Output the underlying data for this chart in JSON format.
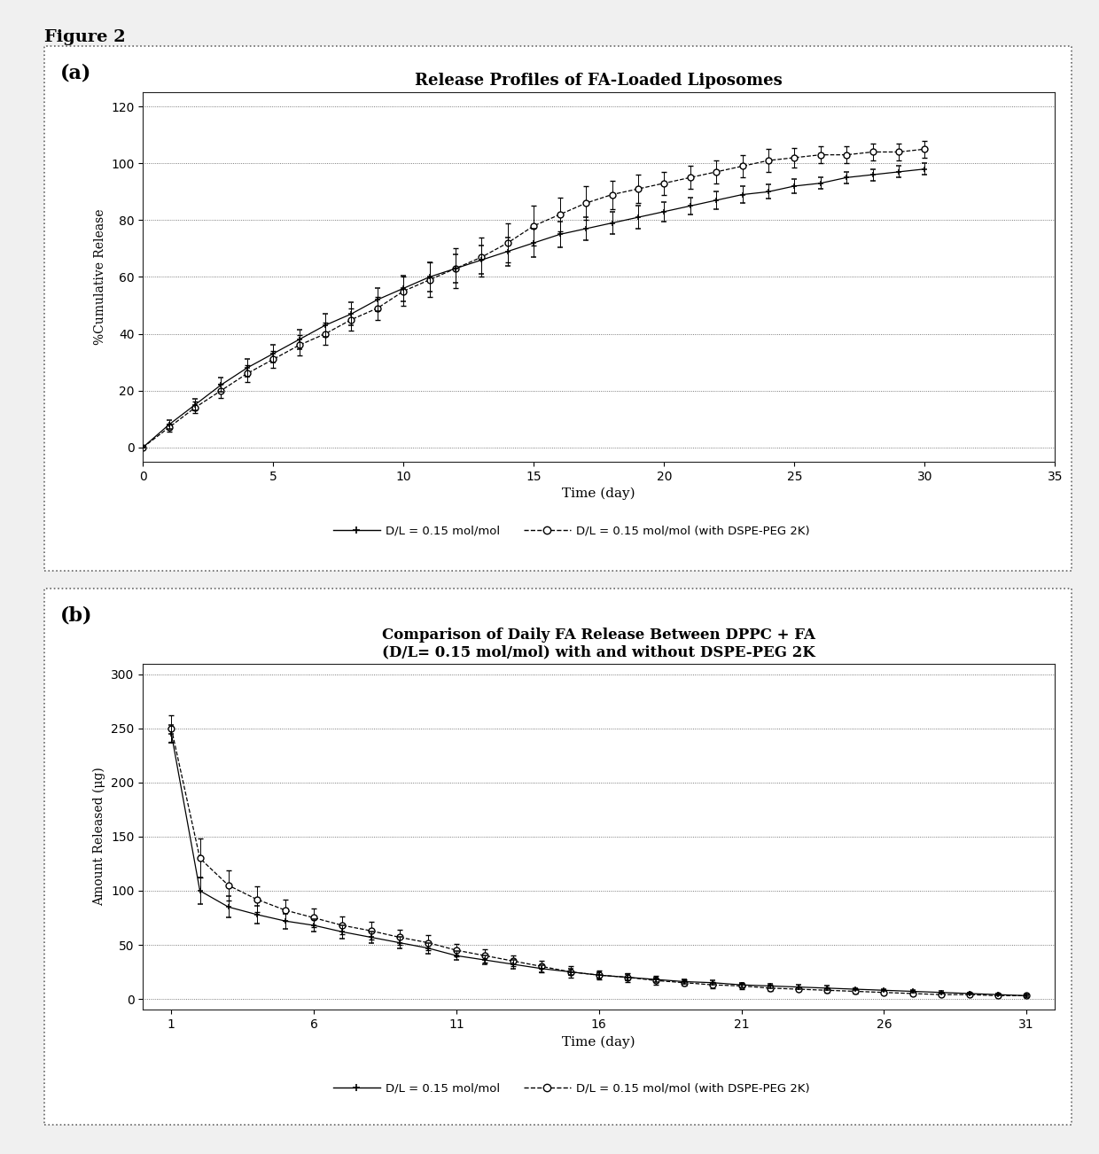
{
  "fig_label": "Figure 2",
  "panel_a": {
    "title": "Release Profiles of FA-Loaded Liposomes",
    "xlabel": "Time (day)",
    "ylabel": "%Cumulative Release",
    "xlim": [
      0,
      35
    ],
    "ylim": [
      -5,
      125
    ],
    "xticks": [
      0,
      5,
      10,
      15,
      20,
      25,
      30,
      35
    ],
    "yticks": [
      0,
      20,
      40,
      60,
      80,
      100,
      120
    ],
    "series1_x": [
      0,
      1,
      2,
      3,
      4,
      5,
      6,
      7,
      8,
      9,
      10,
      11,
      12,
      13,
      14,
      15,
      16,
      17,
      18,
      19,
      20,
      21,
      22,
      23,
      24,
      25,
      26,
      27,
      28,
      29,
      30
    ],
    "series1_y": [
      0,
      8,
      15,
      22,
      28,
      33,
      38,
      43,
      47,
      52,
      56,
      60,
      63,
      66,
      69,
      72,
      75,
      77,
      79,
      81,
      83,
      85,
      87,
      89,
      90,
      92,
      93,
      95,
      96,
      97,
      98
    ],
    "series1_err": [
      0,
      1.5,
      2,
      2.5,
      3,
      3,
      3.5,
      4,
      4,
      4,
      4.5,
      5,
      5,
      5,
      5,
      5,
      4.5,
      4,
      4,
      4,
      3.5,
      3,
      3,
      3,
      2.5,
      2.5,
      2,
      2,
      2,
      2,
      2
    ],
    "series2_x": [
      0,
      1,
      2,
      3,
      4,
      5,
      6,
      7,
      8,
      9,
      10,
      11,
      12,
      13,
      14,
      15,
      16,
      17,
      18,
      19,
      20,
      21,
      22,
      23,
      24,
      25,
      26,
      27,
      28,
      29,
      30
    ],
    "series2_y": [
      0,
      7,
      14,
      20,
      26,
      31,
      36,
      40,
      45,
      49,
      55,
      59,
      63,
      67,
      72,
      78,
      82,
      86,
      89,
      91,
      93,
      95,
      97,
      99,
      101,
      102,
      103,
      103,
      104,
      104,
      105
    ],
    "series2_err": [
      0,
      1.5,
      2,
      2.5,
      3,
      3,
      3.5,
      4,
      4,
      4,
      5,
      6,
      7,
      7,
      7,
      7,
      6,
      6,
      5,
      5,
      4,
      4,
      4,
      4,
      4,
      3.5,
      3,
      3,
      3,
      3,
      3
    ],
    "legend1": "D/L = 0.15 mol/mol",
    "legend2": "D/L = 0.15 mol/mol (with DSPE-PEG 2K)"
  },
  "panel_b": {
    "title": "Comparison of Daily FA Release Between DPPC + FA\n(D/L= 0.15 mol/mol) with and without DSPE-PEG 2K",
    "xlabel": "Time (day)",
    "ylabel": "Amount Released (μg)",
    "xlim": [
      0,
      32
    ],
    "ylim": [
      -10,
      310
    ],
    "xticks": [
      1,
      6,
      11,
      16,
      21,
      26,
      31
    ],
    "yticks": [
      0,
      50,
      100,
      150,
      200,
      250,
      300
    ],
    "series1_x": [
      1,
      2,
      3,
      4,
      5,
      6,
      7,
      8,
      9,
      10,
      11,
      12,
      13,
      14,
      15,
      16,
      17,
      18,
      19,
      20,
      21,
      22,
      23,
      24,
      25,
      26,
      27,
      28,
      29,
      30,
      31
    ],
    "series1_y": [
      245,
      100,
      85,
      78,
      72,
      68,
      62,
      57,
      52,
      47,
      40,
      36,
      32,
      28,
      25,
      22,
      20,
      18,
      16,
      15,
      13,
      12,
      11,
      10,
      9,
      8,
      7,
      6,
      5,
      4,
      3
    ],
    "series1_err": [
      8,
      12,
      10,
      8,
      7,
      6,
      6,
      5,
      5,
      5,
      4,
      4,
      4,
      3,
      3,
      3,
      3,
      2,
      2,
      2,
      2,
      2,
      2,
      2,
      1,
      1,
      1,
      1,
      1,
      1,
      1
    ],
    "series2_x": [
      1,
      2,
      3,
      4,
      5,
      6,
      7,
      8,
      9,
      10,
      11,
      12,
      13,
      14,
      15,
      16,
      17,
      18,
      19,
      20,
      21,
      22,
      23,
      24,
      25,
      26,
      27,
      28,
      29,
      30,
      31
    ],
    "series2_y": [
      250,
      130,
      105,
      92,
      82,
      75,
      68,
      63,
      57,
      52,
      45,
      40,
      35,
      30,
      25,
      22,
      20,
      17,
      15,
      13,
      12,
      10,
      9,
      8,
      7,
      6,
      5,
      4,
      4,
      3,
      3
    ],
    "series2_err": [
      12,
      18,
      14,
      12,
      10,
      9,
      8,
      8,
      7,
      7,
      6,
      6,
      5,
      5,
      5,
      4,
      4,
      4,
      3,
      3,
      3,
      3,
      2,
      2,
      2,
      2,
      2,
      1,
      1,
      1,
      1
    ],
    "legend1": "D/L = 0.15 mol/mol",
    "legend2": "D/L = 0.15 mol/mol (with DSPE-PEG 2K)"
  },
  "background_color": "#f0f0f0",
  "plot_bg_color": "#ffffff",
  "grid_color": "#555555",
  "border_color": "#666666"
}
